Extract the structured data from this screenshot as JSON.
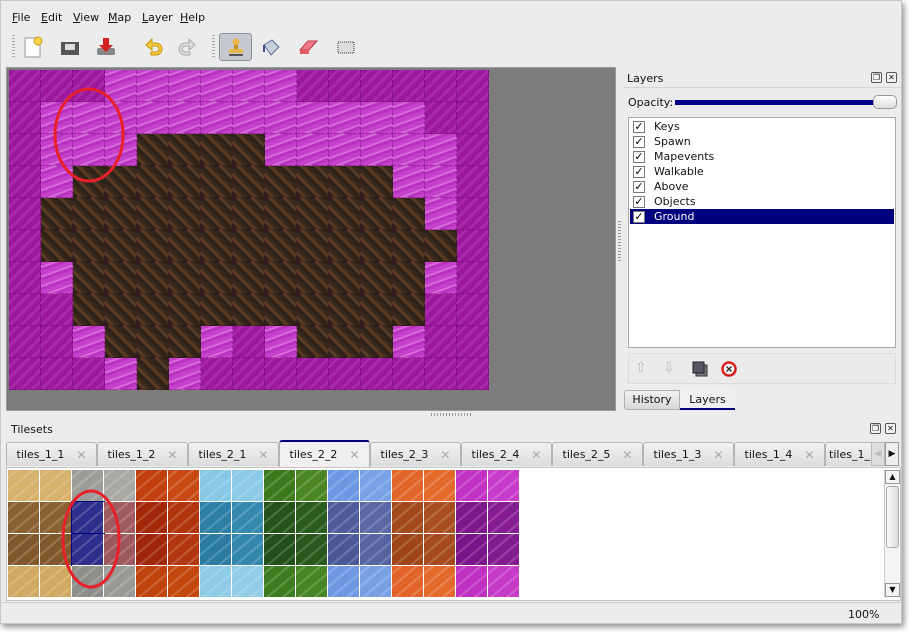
{
  "menu": [
    "File",
    "Edit",
    "View",
    "Map",
    "Layer",
    "Help"
  ],
  "toolbar": {
    "file_tools": [
      "new-file-icon",
      "open-file-icon",
      "save-file-icon"
    ],
    "edit_tools": [
      "undo-icon",
      "redo-icon"
    ],
    "map_tools": [
      "stamp-brush-icon",
      "bucket-fill-icon",
      "eraser-icon",
      "rectangle-select-icon"
    ],
    "active_tool": "stamp-brush-icon"
  },
  "map": {
    "legend": {
      "D": "dark magenta ground",
      "L": "light magenta wall",
      "B": "brown dirt"
    },
    "rows": [
      "DDDLLLLLLDDDDDD",
      "DLLLLLLLLLLLLDD",
      "DLLLBBBBLLLLLLD",
      "DLBBBBBBBBBBLLD",
      "DBBBBBBBBBBBBLD",
      "DBBBBBBBBBBBBBD",
      "DLBBBBBBBBBBBLD",
      "DDBBBBBBBBBBBDD",
      "DDLBBBLDLBBBLDD",
      "DDDLBLDDDDDDDDD"
    ]
  },
  "layers_panel": {
    "title": "Layers",
    "opacity_label": "Opacity:",
    "opacity": 1.0,
    "layers": [
      {
        "name": "Keys",
        "visible": true
      },
      {
        "name": "Spawn",
        "visible": true
      },
      {
        "name": "Mapevents",
        "visible": true
      },
      {
        "name": "Walkable",
        "visible": true
      },
      {
        "name": "Above",
        "visible": true
      },
      {
        "name": "Objects",
        "visible": true
      },
      {
        "name": "Ground",
        "visible": true,
        "selected": true
      }
    ],
    "buttons": [
      "move-layer-up-icon",
      "move-layer-down-icon",
      "duplicate-layer-icon",
      "remove-layer-icon"
    ],
    "tabs": [
      {
        "label": "History"
      },
      {
        "label": "Layers",
        "active": true
      }
    ]
  },
  "tilesets_panel": {
    "title": "Tilesets",
    "tabs": [
      "tiles_1_1",
      "tiles_1_2",
      "tiles_2_1",
      "tiles_2_2",
      "tiles_2_3",
      "tiles_2_4",
      "tiles_2_5",
      "tiles_1_3",
      "tiles_1_4",
      "tiles_1_"
    ],
    "active_tab": "tiles_2_2",
    "tile_colors": [
      [
        "#d6b26c",
        "#d6b26c",
        "#9c9c98",
        "#a8a8a4",
        "#c2400e",
        "#c84a12",
        "#86c8e6",
        "#8ccbe8",
        "#3d7a1e",
        "#4a8624",
        "#6c98e4",
        "#7aa2e6",
        "#e2662a",
        "#e46a2c",
        "#c232c4",
        "#c83ccb"
      ],
      [
        "#8a6232",
        "#8a6232",
        "#2e2e8c",
        "#a05c60",
        "#a3280a",
        "#b0340c",
        "#2e7fa6",
        "#3588ae",
        "#24541a",
        "#2a5c1e",
        "#4e5c9c",
        "#5a68a6",
        "#a24a1c",
        "#a84e20",
        "#7e168c",
        "#861c94"
      ],
      [
        "#80582c",
        "#80582c",
        "#2e2e8c",
        "#9c585c",
        "#a0260a",
        "#b2360e",
        "#2c7ca2",
        "#3386ac",
        "#22501a",
        "#28581c",
        "#4a5898",
        "#5664a2",
        "#9e461a",
        "#a44a1e",
        "#7a148a",
        "#821a90"
      ],
      [
        "#d0aa62",
        "#d0aa62",
        "#8e8e8a",
        "#9a9a96",
        "#c0420c",
        "#c4480e",
        "#8ecbe6",
        "#92cde8",
        "#3e7c20",
        "#468624",
        "#6e98e2",
        "#7aa0e4",
        "#e26428",
        "#e46a2c",
        "#c030c2",
        "#c63ac8"
      ]
    ],
    "selected_tiles": [
      [
        1,
        2
      ],
      [
        2,
        2
      ]
    ]
  },
  "highlight_color": "#e8202a",
  "status": {
    "zoom": "100%"
  }
}
